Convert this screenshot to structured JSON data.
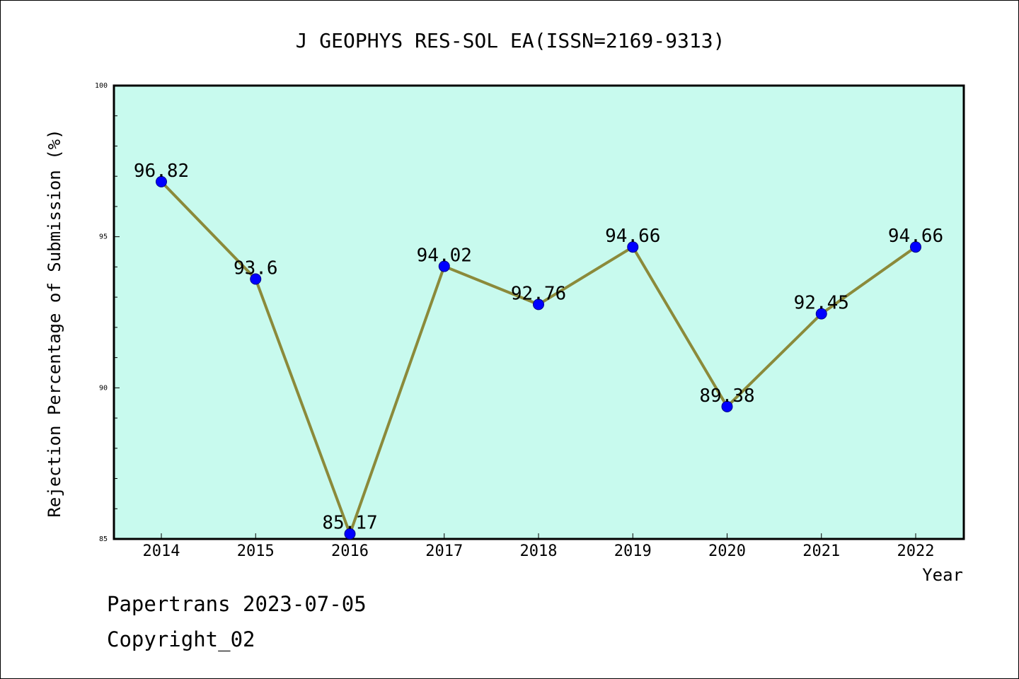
{
  "chart_data": {
    "type": "line",
    "title": "J GEOPHYS RES-SOL EA(ISSN=2169-9313)",
    "xlabel": "Year",
    "ylabel": "Rejection Percentage of Submission (%)",
    "ylim": [
      85,
      100
    ],
    "yticks": [
      85,
      90,
      95,
      100
    ],
    "categories": [
      "2014",
      "2015",
      "2016",
      "2017",
      "2018",
      "2019",
      "2020",
      "2021",
      "2022"
    ],
    "series": [
      {
        "values": [
          96.82,
          93.6,
          85.17,
          94.02,
          92.76,
          94.66,
          89.38,
          92.45,
          94.66
        ],
        "labels": [
          "96.82",
          "93.6",
          "85.17",
          "94.02",
          "92.76",
          "94.66",
          "89.38",
          "92.45",
          "94.66"
        ]
      }
    ],
    "colors": {
      "plot_background": "#c8faee",
      "line": "#8b8a3a",
      "marker": "#0000ff"
    },
    "grid": false
  },
  "footer": {
    "source": "Papertrans 2023-07-05",
    "copyright": "Copyright_02"
  }
}
